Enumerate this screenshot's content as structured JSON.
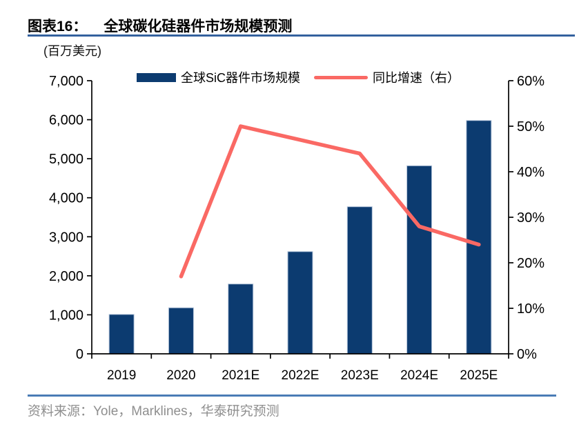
{
  "header": {
    "figure_label": "图表16：",
    "title": "全球碳化硅器件市场规模预测"
  },
  "unit_label": "(百万美元)",
  "legend": [
    {
      "label": "全球SiC器件市场规模",
      "type": "bar",
      "color": "#0c3b70"
    },
    {
      "label": "同比增速（右）",
      "type": "line",
      "color": "#fa6964"
    }
  ],
  "chart_data": {
    "type": "combo",
    "title": "全球碳化硅器件市场规模预测",
    "categories": [
      "2019",
      "2020",
      "2021E",
      "2022E",
      "2023E",
      "2024E",
      "2025E"
    ],
    "series": [
      {
        "name": "全球SiC器件市场规模",
        "type": "bar",
        "axis": "left",
        "color": "#0c3b70",
        "values": [
          1010,
          1180,
          1790,
          2620,
          3770,
          4820,
          5980
        ]
      },
      {
        "name": "同比增速（右）",
        "type": "line",
        "axis": "right",
        "color": "#fa6964",
        "values": [
          null,
          17,
          50,
          47,
          44,
          28,
          24
        ]
      }
    ],
    "left_axis": {
      "label": "(百万美元)",
      "min": 0,
      "max": 7000,
      "step": 1000,
      "tick_labels": [
        "0",
        "1,000",
        "2,000",
        "3,000",
        "4,000",
        "5,000",
        "6,000",
        "7,000"
      ]
    },
    "right_axis": {
      "min": 0,
      "max": 60,
      "step": 10,
      "tick_labels": [
        "0%",
        "10%",
        "20%",
        "30%",
        "40%",
        "50%",
        "60%"
      ]
    },
    "grid": false,
    "legend_position": "top"
  },
  "source": {
    "text": "资料来源：Yole，Marklines，华泰研究预测"
  }
}
